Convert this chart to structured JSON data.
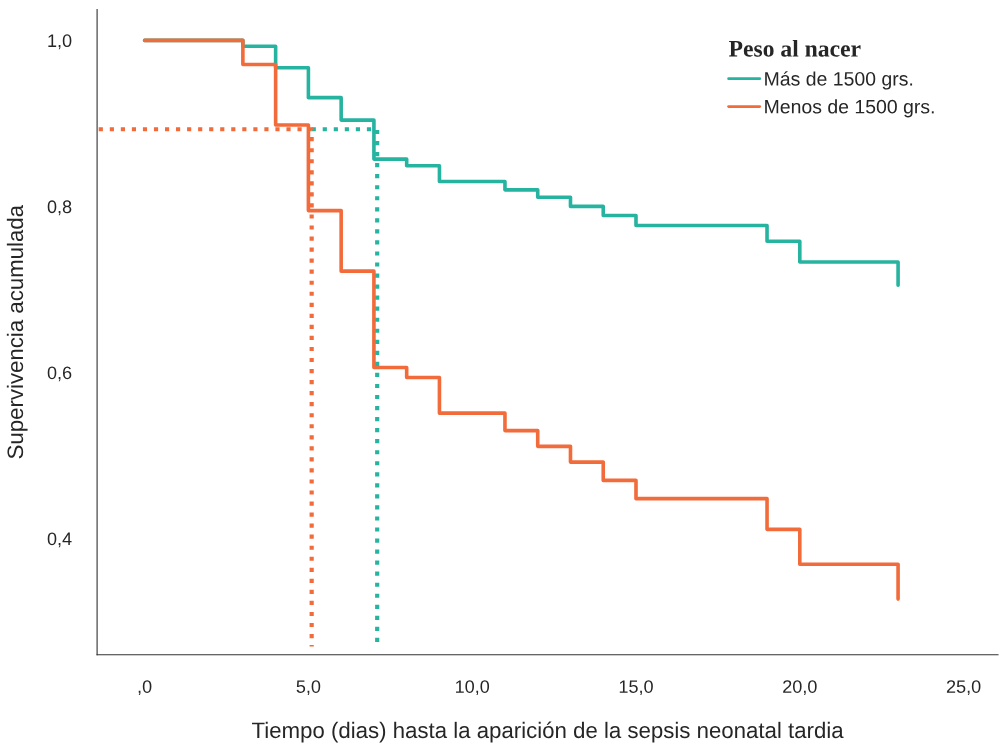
{
  "chart_data": {
    "type": "step",
    "xlabel": "Tiempo (dias) hasta la aparición de la sepsis neonatal tardia",
    "ylabel": "Supervivencia acumulada",
    "legend_title": "Peso al nacer",
    "legend": "top right",
    "grid": false,
    "xlim": [
      -1.45,
      26.05
    ],
    "ylim": [
      0.26,
      1.037
    ],
    "xticks": [
      {
        "value": 0,
        "label": ",0"
      },
      {
        "value": 5,
        "label": "5,0"
      },
      {
        "value": 10,
        "label": "10,0"
      },
      {
        "value": 15,
        "label": "15,0"
      },
      {
        "value": 20,
        "label": "20,0"
      },
      {
        "value": 25,
        "label": "25,0"
      }
    ],
    "yticks": [
      {
        "value": 0.4,
        "label": "0,4"
      },
      {
        "value": 0.6,
        "label": "0,6"
      },
      {
        "value": 0.8,
        "label": "0,8"
      },
      {
        "value": 1.0,
        "label": "1,0"
      }
    ],
    "series": [
      {
        "name": "Más de 1500 grs.",
        "color": "#26b3a0",
        "x": [
          0,
          3,
          4,
          5,
          6,
          7,
          8,
          9,
          11,
          12,
          13,
          14,
          15,
          19,
          20,
          23,
          23
        ],
        "values": [
          1.0,
          0.993,
          0.967,
          0.931,
          0.904,
          0.857,
          0.849,
          0.83,
          0.82,
          0.811,
          0.8,
          0.789,
          0.777,
          0.758,
          0.733,
          0.733,
          0.705
        ]
      },
      {
        "name": "Menos de 1500 grs.",
        "color": "#f26b3a",
        "x": [
          0,
          3,
          4,
          5,
          6,
          7,
          8,
          9,
          11,
          12,
          13,
          14,
          15,
          19,
          20,
          23,
          23
        ],
        "values": [
          1.0,
          0.971,
          0.898,
          0.795,
          0.722,
          0.606,
          0.594,
          0.551,
          0.53,
          0.511,
          0.492,
          0.47,
          0.448,
          0.411,
          0.369,
          0.369,
          0.327
        ]
      },
      {
        "type": "line",
        "line_style": "dotted",
        "color": "#26b3a0",
        "x": [
          5.1,
          7.1,
          7.1
        ],
        "values": [
          0.893,
          0.893,
          0.27
        ]
      },
      {
        "type": "line",
        "line_style": "dotted",
        "color": "#f26b3a",
        "x": [
          -1.4,
          5.1,
          5.1
        ],
        "values": [
          0.893,
          0.893,
          0.27
        ]
      }
    ]
  }
}
